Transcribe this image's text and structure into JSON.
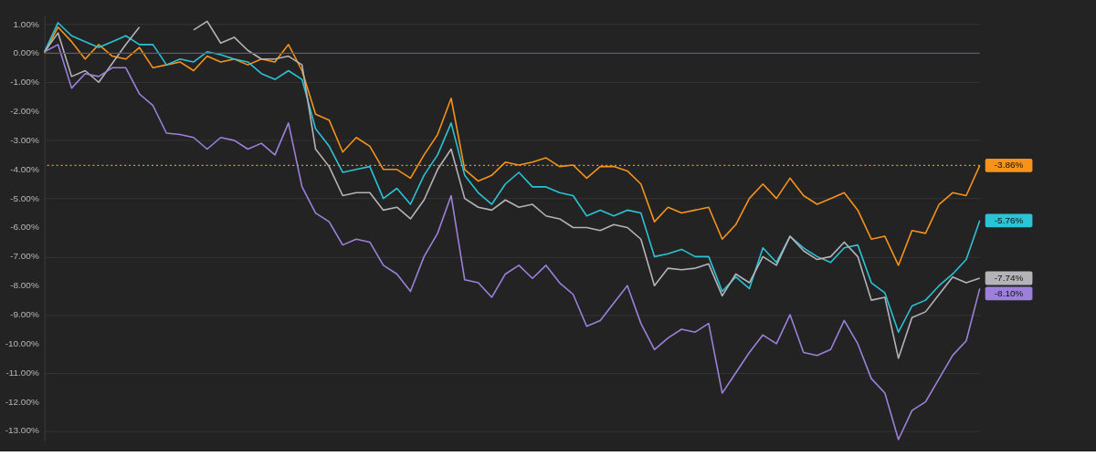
{
  "chart_data": {
    "type": "line",
    "categories": [
      null,
      null,
      null,
      null,
      null,
      null,
      null,
      null,
      null,
      null,
      null,
      null,
      null,
      null,
      null,
      null,
      null,
      null,
      null,
      null,
      null,
      null,
      null,
      null,
      null,
      null,
      null,
      null,
      null,
      null,
      null,
      null,
      null,
      null,
      null,
      null,
      null,
      null,
      null,
      null,
      null,
      null,
      null,
      null,
      null,
      null,
      null,
      null,
      null,
      null,
      null,
      null,
      null,
      null,
      null,
      null,
      null,
      null,
      null,
      null,
      null,
      null,
      null,
      null,
      null,
      null,
      null,
      null,
      null,
      null
    ],
    "series": [
      {
        "color": "#f7931a",
        "values": [
          0,
          0.9,
          0.4,
          -0.2,
          0.3,
          -0.1,
          -0.2,
          0.2,
          -0.5,
          -0.4,
          -0.3,
          -0.6,
          -0.1,
          -0.3,
          -0.2,
          -0.4,
          -0.2,
          -0.3,
          0.3,
          -0.6,
          -2.1,
          -2.3,
          -3.4,
          -2.9,
          -3.2,
          -4.0,
          -4.0,
          -4.3,
          -3.5,
          -2.8,
          -1.55,
          -4.0,
          -4.4,
          -4.2,
          -3.75,
          -3.85,
          -3.75,
          -3.6,
          -3.9,
          -3.85,
          -4.3,
          -3.9,
          -3.9,
          -4.05,
          -4.5,
          -5.8,
          -5.3,
          -5.5,
          -5.4,
          -5.3,
          -6.4,
          -5.9,
          -5.0,
          -4.5,
          -5.0,
          -4.3,
          -4.9,
          -5.2,
          -5.0,
          -4.8,
          -5.4,
          -6.4,
          -6.3,
          -7.3,
          -6.1,
          -6.2,
          -5.2,
          -4.8,
          -4.9,
          -3.86
        ]
      },
      {
        "color": "#2bc3d6",
        "values": [
          0.05,
          1.05,
          0.6,
          0.4,
          0.2,
          0.4,
          0.6,
          0.3,
          0.3,
          -0.4,
          -0.2,
          -0.3,
          0.05,
          -0.05,
          -0.2,
          -0.3,
          -0.7,
          -0.9,
          -0.6,
          -0.9,
          -2.6,
          -3.2,
          -4.1,
          -4.0,
          -3.9,
          -5.0,
          -4.65,
          -5.2,
          -4.2,
          -3.5,
          -2.4,
          -4.2,
          -4.8,
          -5.2,
          -4.5,
          -4.1,
          -4.6,
          -4.6,
          -4.8,
          -4.9,
          -5.6,
          -5.4,
          -5.6,
          -5.4,
          -5.5,
          -7.0,
          -6.9,
          -6.75,
          -7.0,
          -7.0,
          -8.2,
          -7.7,
          -8.1,
          -6.7,
          -7.2,
          -6.3,
          -6.7,
          -7.0,
          -7.2,
          -6.7,
          -6.6,
          -7.9,
          -8.25,
          -9.6,
          -8.7,
          -8.5,
          -8.0,
          -7.6,
          -7.1,
          -5.76
        ]
      },
      {
        "color": "#b4b4b8",
        "values": [
          0.05,
          0.7,
          -0.8,
          -0.6,
          -1.0,
          -0.35,
          0.3,
          0.9,
          null,
          null,
          null,
          0.8,
          1.1,
          0.35,
          0.55,
          0.1,
          -0.2,
          -0.2,
          -0.1,
          -0.4,
          -3.3,
          -3.9,
          -4.9,
          -4.8,
          -4.8,
          -5.4,
          -5.3,
          -5.7,
          -5.05,
          -4.0,
          -3.3,
          -5.0,
          -5.3,
          -5.4,
          -5.05,
          -5.3,
          -5.2,
          -5.6,
          -5.7,
          -6.0,
          -6.0,
          -6.1,
          -5.9,
          -6.0,
          -6.4,
          -8.0,
          -7.4,
          -7.45,
          -7.4,
          -7.25,
          -8.35,
          -7.6,
          -7.9,
          -7.0,
          -7.3,
          -6.3,
          -6.8,
          -7.1,
          -7.0,
          -6.5,
          -7.0,
          -8.5,
          -8.4,
          -10.5,
          -9.1,
          -8.9,
          -8.3,
          -7.7,
          -7.9,
          -7.74
        ]
      },
      {
        "color": "#9d80dc",
        "values": [
          0.05,
          0.3,
          -1.2,
          -0.7,
          -0.8,
          -0.5,
          -0.5,
          -1.4,
          -1.8,
          -2.75,
          -2.8,
          -2.9,
          -3.3,
          -2.9,
          -3.0,
          -3.3,
          -3.1,
          -3.5,
          -2.4,
          -4.6,
          -5.5,
          -5.8,
          -6.6,
          -6.4,
          -6.5,
          -7.3,
          -7.6,
          -8.2,
          -7.0,
          -6.2,
          -4.9,
          -7.8,
          -7.9,
          -8.4,
          -7.6,
          -7.3,
          -7.75,
          -7.3,
          -7.9,
          -8.3,
          -9.4,
          -9.2,
          -8.6,
          -8.0,
          -9.3,
          -10.2,
          -9.8,
          -9.5,
          -9.6,
          -9.3,
          -11.7,
          -11.0,
          -10.3,
          -9.7,
          -10.0,
          -9.0,
          -10.3,
          -10.4,
          -10.2,
          -9.2,
          -10.0,
          -11.2,
          -11.7,
          -13.3,
          -12.3,
          -12.0,
          -11.2,
          -10.4,
          -9.9,
          -8.1
        ]
      }
    ],
    "ylim": [
      -13.35,
      1.32
    ],
    "yticks": [
      {
        "value": 1,
        "label": "1.00%"
      },
      {
        "value": 0,
        "label": "0.00%"
      },
      {
        "value": -1,
        "label": "-1.00%"
      },
      {
        "value": -2,
        "label": "-2.00%"
      },
      {
        "value": -3,
        "label": "-3.00%"
      },
      {
        "value": -4,
        "label": "-4.00%"
      },
      {
        "value": -5,
        "label": "-5.00%"
      },
      {
        "value": -6,
        "label": "-6.00%"
      },
      {
        "value": -7,
        "label": "-7.00%"
      },
      {
        "value": -8,
        "label": "-8.00%"
      },
      {
        "value": -9,
        "label": "-9.00%"
      },
      {
        "value": -10,
        "label": "-10.00%"
      },
      {
        "value": -11,
        "label": "-11.00%"
      },
      {
        "value": -12,
        "label": "-12.00%"
      },
      {
        "value": -13,
        "label": "-13.00%"
      }
    ],
    "ref_lines": [
      {
        "axis": "y",
        "value": 0,
        "color": "#5c5c6a",
        "line_style": "solid"
      },
      {
        "axis": "y",
        "value": -3.86,
        "color": "#f7931a",
        "line_style": "dotted"
      }
    ],
    "annotations": [
      "-3.86%",
      "-5.76%",
      "-7.74%",
      "-8.10%"
    ],
    "grid": "y",
    "line_style": "solid",
    "marker": "none"
  }
}
